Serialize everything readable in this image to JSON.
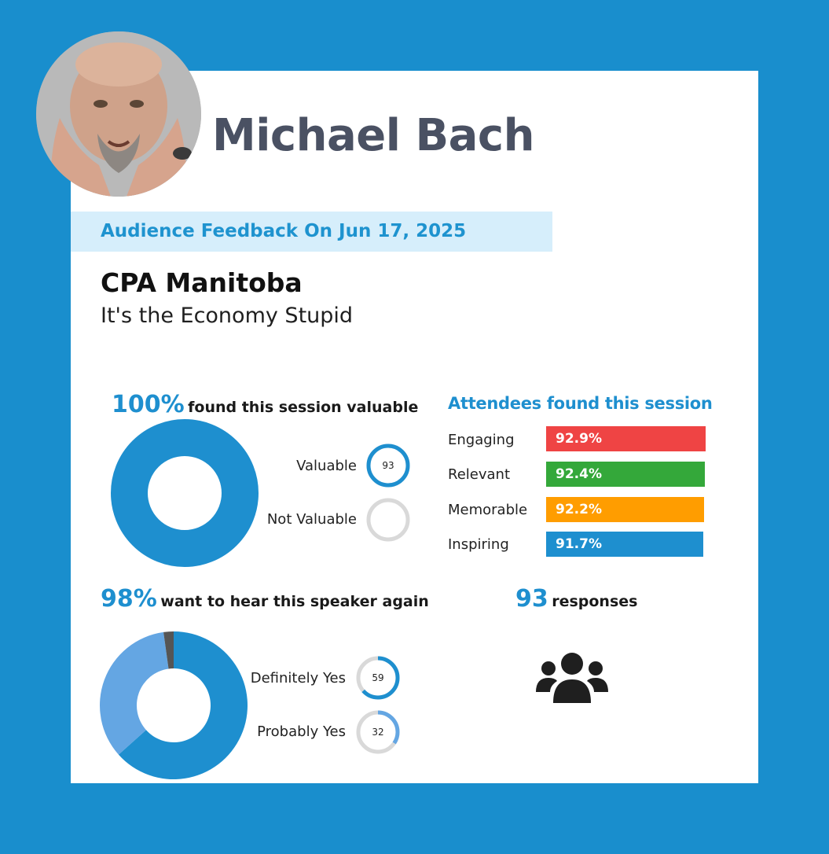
{
  "speaker": {
    "name": "Michael Bach"
  },
  "feedback_banner": "Audience Feedback On Jun 17, 2025",
  "event": {
    "organization": "CPA Manitoba",
    "session_title": "It's the Economy Stupid"
  },
  "valuable": {
    "headline_pct": "100%",
    "headline_text": "found this session valuable",
    "legend": [
      {
        "label": "Valuable",
        "count": "93",
        "fraction": 1.0,
        "color": "#1e8fcf"
      },
      {
        "label": "Not Valuable",
        "count": "",
        "fraction": 0.0,
        "color": "#d9d9d9"
      }
    ]
  },
  "attendees": {
    "title": "Attendees found this session",
    "items": [
      {
        "label": "Engaging",
        "value": "92.9%",
        "color": "#ef4444"
      },
      {
        "label": "Relevant",
        "value": "92.4%",
        "color": "#34a83a"
      },
      {
        "label": "Memorable",
        "value": "92.2%",
        "color": "#ff9d00"
      },
      {
        "label": "Inspiring",
        "value": "91.7%",
        "color": "#1e8fcf"
      }
    ]
  },
  "again": {
    "headline_pct": "98%",
    "headline_text": "want to hear this speaker again",
    "legend": [
      {
        "label": "Definitely Yes",
        "count": "59",
        "fraction": 0.634,
        "color": "#1e8fcf"
      },
      {
        "label": "Probably Yes",
        "count": "32",
        "fraction": 0.344,
        "color": "#64a6e3"
      }
    ],
    "other_color": "#555555"
  },
  "responses": {
    "count": "93",
    "label": "responses"
  },
  "chart_data": [
    {
      "type": "pie",
      "categories": [
        "Valuable",
        "Not Valuable"
      ],
      "values": [
        93,
        0
      ]
    },
    {
      "type": "bar",
      "categories": [
        "Engaging",
        "Relevant",
        "Memorable",
        "Inspiring"
      ],
      "values": [
        92.9,
        92.4,
        92.2,
        91.7
      ]
    },
    {
      "type": "pie",
      "categories": [
        "Definitely Yes",
        "Probably Yes"
      ],
      "values": [
        59,
        32
      ]
    }
  ]
}
